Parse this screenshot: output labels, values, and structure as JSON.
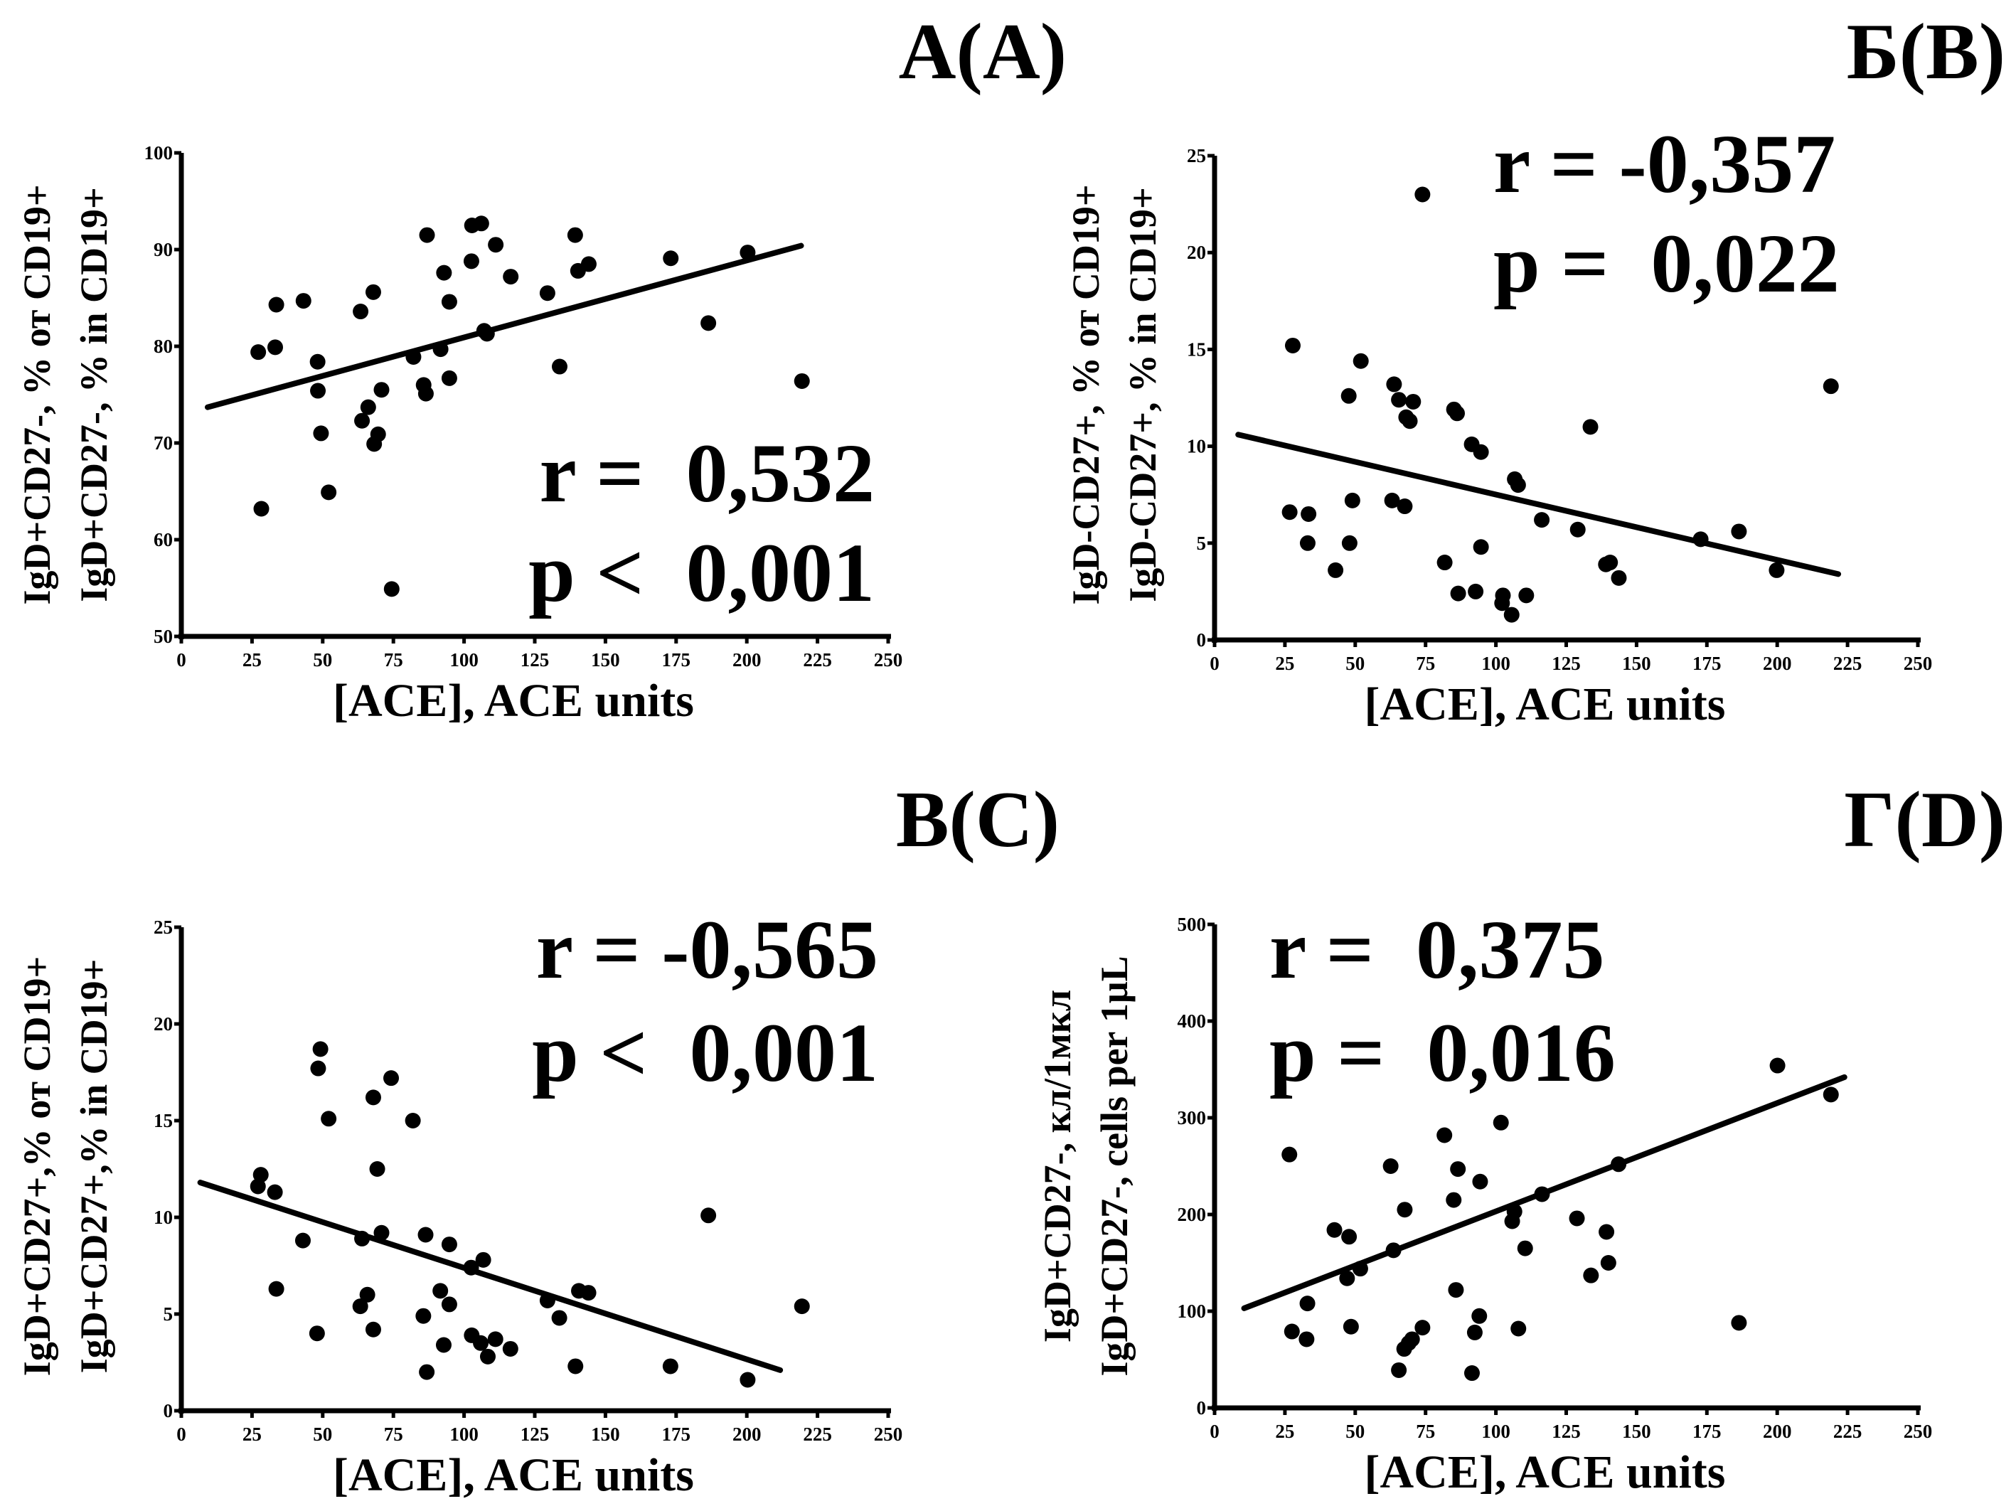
{
  "figure": {
    "background": "#ffffff",
    "marker_color": "#000000"
  },
  "chart_data": [
    {
      "id": "A",
      "type": "scatter",
      "title": "А(A)",
      "xlabel": "[ACE], ACE units",
      "ylabel_lines": [
        "IgD+CD27-, % от CD19+",
        "IgD+CD27-, % in CD19+"
      ],
      "xlim": [
        0,
        250
      ],
      "ylim": [
        50,
        100
      ],
      "xticks": [
        0,
        25,
        50,
        75,
        100,
        125,
        150,
        175,
        200,
        225,
        250
      ],
      "yticks": [
        50,
        60,
        70,
        80,
        90,
        100
      ],
      "grid": false,
      "stats": {
        "r": "r =  0,532",
        "p": "p <  0,001"
      },
      "stats_position": "bottom-right",
      "fit_line": {
        "x": [
          9.3,
          219.2
        ],
        "y": [
          73.7,
          90.4
        ]
      },
      "points": [
        [
          27.2,
          79.4
        ],
        [
          33.2,
          79.9
        ],
        [
          33.6,
          84.3
        ],
        [
          43.2,
          84.7
        ],
        [
          48.2,
          78.4
        ],
        [
          48.3,
          75.4
        ],
        [
          49.4,
          71.0
        ],
        [
          52.1,
          64.9
        ],
        [
          28.3,
          63.2
        ],
        [
          63.4,
          83.6
        ],
        [
          63.9,
          72.3
        ],
        [
          66.1,
          73.7
        ],
        [
          67.9,
          85.6
        ],
        [
          68.2,
          69.9
        ],
        [
          69.6,
          70.9
        ],
        [
          70.8,
          75.5
        ],
        [
          74.4,
          54.9
        ],
        [
          82.1,
          78.9
        ],
        [
          85.7,
          76.0
        ],
        [
          86.5,
          75.1
        ],
        [
          86.9,
          91.5
        ],
        [
          91.7,
          79.7
        ],
        [
          92.9,
          87.6
        ],
        [
          94.8,
          84.6
        ],
        [
          94.8,
          76.7
        ],
        [
          102.6,
          88.8
        ],
        [
          102.8,
          92.5
        ],
        [
          106.1,
          92.7
        ],
        [
          107.1,
          81.6
        ],
        [
          108.1,
          81.3
        ],
        [
          111.2,
          90.5
        ],
        [
          116.5,
          87.2
        ],
        [
          129.5,
          85.5
        ],
        [
          133.8,
          77.9
        ],
        [
          139.3,
          91.5
        ],
        [
          140.3,
          87.8
        ],
        [
          144.1,
          88.5
        ],
        [
          173.1,
          89.1
        ],
        [
          186.4,
          82.4
        ],
        [
          200.3,
          89.7
        ],
        [
          219.5,
          76.4
        ]
      ]
    },
    {
      "id": "B",
      "type": "scatter",
      "title": "Б(B)",
      "xlabel": "[ACE], ACE units",
      "ylabel_lines": [
        "IgD-CD27+, % от CD19+",
        "IgD-CD27+, % in CD19+"
      ],
      "xlim": [
        0,
        250
      ],
      "ylim": [
        0,
        25
      ],
      "xticks": [
        0,
        25,
        50,
        75,
        100,
        125,
        150,
        175,
        200,
        225,
        250
      ],
      "yticks": [
        0,
        5,
        10,
        15,
        20,
        25
      ],
      "grid": false,
      "stats": {
        "r": "r = -0,357",
        "p": "p =  0,022"
      },
      "stats_position": "top-right",
      "fit_line": {
        "x": [
          8.4,
          221.7
        ],
        "y": [
          10.6,
          3.4
        ]
      },
      "points": [
        [
          27.8,
          15.2
        ],
        [
          52.0,
          14.4
        ],
        [
          47.7,
          12.6
        ],
        [
          63.8,
          13.2
        ],
        [
          65.5,
          12.4
        ],
        [
          70.6,
          12.3
        ],
        [
          68.1,
          11.5
        ],
        [
          69.4,
          11.3
        ],
        [
          85.1,
          11.9
        ],
        [
          86.2,
          11.7
        ],
        [
          91.4,
          10.1
        ],
        [
          94.7,
          9.7
        ],
        [
          106.7,
          8.3
        ],
        [
          107.9,
          8.0
        ],
        [
          133.6,
          11.0
        ],
        [
          219.1,
          13.1
        ],
        [
          73.9,
          23.0
        ],
        [
          26.7,
          6.6
        ],
        [
          33.4,
          6.5
        ],
        [
          49.0,
          7.2
        ],
        [
          63.1,
          7.2
        ],
        [
          67.6,
          6.9
        ],
        [
          33.1,
          5.0
        ],
        [
          48.0,
          5.0
        ],
        [
          43.0,
          3.6
        ],
        [
          81.8,
          4.0
        ],
        [
          94.7,
          4.8
        ],
        [
          86.6,
          2.4
        ],
        [
          92.8,
          2.5
        ],
        [
          102.5,
          2.3
        ],
        [
          102.2,
          1.9
        ],
        [
          105.6,
          1.3
        ],
        [
          110.8,
          2.3
        ],
        [
          116.3,
          6.2
        ],
        [
          129.1,
          5.7
        ],
        [
          139.1,
          3.9
        ],
        [
          140.6,
          4.0
        ],
        [
          143.7,
          3.2
        ],
        [
          172.8,
          5.2
        ],
        [
          186.4,
          5.6
        ],
        [
          199.8,
          3.6
        ]
      ]
    },
    {
      "id": "C",
      "type": "scatter",
      "title": "В(C)",
      "xlabel": "[ACE], ACE units",
      "ylabel_lines": [
        "IgD+CD27+,% от CD19+",
        "IgD+CD27+,% in CD19+"
      ],
      "xlim": [
        0,
        250
      ],
      "ylim": [
        0,
        25
      ],
      "xticks": [
        0,
        25,
        50,
        75,
        100,
        125,
        150,
        175,
        200,
        225,
        250
      ],
      "yticks": [
        0,
        5,
        10,
        15,
        20,
        25
      ],
      "grid": false,
      "stats": {
        "r": "r = -0,565",
        "p": "p <  0,001"
      },
      "stats_position": "top-right",
      "fit_line": {
        "x": [
          6.7,
          211.8
        ],
        "y": [
          11.8,
          2.1
        ]
      },
      "points": [
        [
          49.2,
          18.7
        ],
        [
          48.4,
          17.7
        ],
        [
          74.2,
          17.2
        ],
        [
          67.9,
          16.2
        ],
        [
          52.1,
          15.1
        ],
        [
          81.9,
          15.0
        ],
        [
          69.3,
          12.5
        ],
        [
          28.1,
          12.2
        ],
        [
          27.1,
          11.6
        ],
        [
          33.1,
          11.3
        ],
        [
          186.4,
          10.1
        ],
        [
          43.0,
          8.8
        ],
        [
          63.9,
          8.9
        ],
        [
          70.8,
          9.2
        ],
        [
          86.4,
          9.1
        ],
        [
          94.8,
          8.6
        ],
        [
          106.8,
          7.8
        ],
        [
          102.5,
          7.4
        ],
        [
          33.6,
          6.3
        ],
        [
          65.8,
          6.0
        ],
        [
          63.3,
          5.4
        ],
        [
          91.6,
          6.2
        ],
        [
          94.8,
          5.5
        ],
        [
          85.6,
          4.9
        ],
        [
          48.0,
          4.0
        ],
        [
          67.9,
          4.2
        ],
        [
          92.8,
          3.4
        ],
        [
          102.7,
          3.9
        ],
        [
          105.9,
          3.5
        ],
        [
          111.1,
          3.7
        ],
        [
          108.4,
          2.8
        ],
        [
          116.4,
          3.2
        ],
        [
          86.8,
          2.0
        ],
        [
          129.5,
          5.7
        ],
        [
          133.7,
          4.8
        ],
        [
          140.6,
          6.2
        ],
        [
          144.0,
          6.1
        ],
        [
          139.4,
          2.3
        ],
        [
          173.0,
          2.3
        ],
        [
          200.3,
          1.6
        ],
        [
          219.5,
          5.4
        ]
      ]
    },
    {
      "id": "D",
      "type": "scatter",
      "title": "Г(D)",
      "xlabel": "[ACE], ACE units",
      "ylabel_lines": [
        "IgD+CD27-, кл/1мкл",
        "IgD+CD27-, cells per 1μL"
      ],
      "xlim": [
        0,
        250
      ],
      "ylim": [
        0,
        500
      ],
      "xticks": [
        0,
        25,
        50,
        75,
        100,
        125,
        150,
        175,
        200,
        225,
        250
      ],
      "yticks": [
        0,
        100,
        200,
        300,
        400,
        500
      ],
      "grid": false,
      "stats": {
        "r": "r =  0,375",
        "p": "p =  0,016"
      },
      "stats_position": "top-left",
      "fit_line": {
        "x": [
          10.5,
          223.9
        ],
        "y": [
          103,
          342
        ]
      },
      "points": [
        [
          200.1,
          354
        ],
        [
          219.1,
          324
        ],
        [
          101.8,
          295
        ],
        [
          81.7,
          282
        ],
        [
          26.6,
          262
        ],
        [
          62.6,
          250
        ],
        [
          86.5,
          247
        ],
        [
          94.4,
          234
        ],
        [
          85.0,
          215
        ],
        [
          67.6,
          205
        ],
        [
          128.8,
          196
        ],
        [
          106.6,
          203
        ],
        [
          105.8,
          193
        ],
        [
          116.4,
          221
        ],
        [
          143.6,
          252
        ],
        [
          42.6,
          184
        ],
        [
          47.8,
          177
        ],
        [
          139.3,
          182
        ],
        [
          110.4,
          165
        ],
        [
          63.6,
          163
        ],
        [
          51.8,
          144
        ],
        [
          47.1,
          134
        ],
        [
          140.0,
          150
        ],
        [
          133.8,
          137
        ],
        [
          85.8,
          122
        ],
        [
          33.0,
          108
        ],
        [
          94.1,
          95
        ],
        [
          48.5,
          84
        ],
        [
          73.9,
          83
        ],
        [
          27.5,
          79
        ],
        [
          92.5,
          78
        ],
        [
          108.0,
          82
        ],
        [
          32.7,
          71
        ],
        [
          70.2,
          71
        ],
        [
          69.0,
          67
        ],
        [
          67.4,
          61
        ],
        [
          186.4,
          88
        ],
        [
          65.5,
          39
        ],
        [
          91.5,
          36
        ]
      ]
    }
  ]
}
